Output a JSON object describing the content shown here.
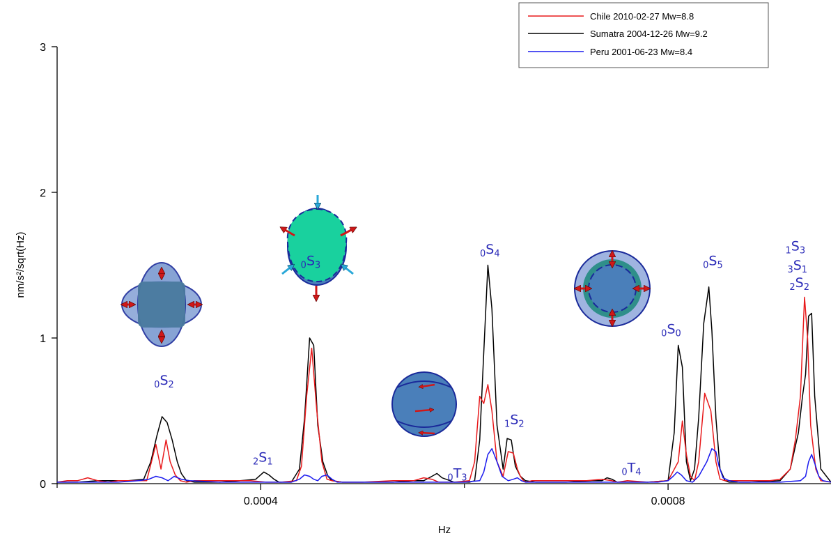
{
  "chart_data": {
    "type": "line",
    "xlabel": "Hz",
    "ylabel": "nm/s²/sqrt(Hz)",
    "xlim": [
      0.0002,
      0.00096
    ],
    "ylim": [
      0,
      3
    ],
    "x_ticks": [
      {
        "value": 0.0004,
        "label": "0.0004"
      },
      {
        "value": 0.0008,
        "label": "0.0008"
      }
    ],
    "y_ticks": [
      {
        "value": 0,
        "label": "0"
      },
      {
        "value": 1,
        "label": "1"
      },
      {
        "value": 2,
        "label": "2"
      },
      {
        "value": 3,
        "label": "3"
      }
    ],
    "legend": {
      "placement": "top-right"
    },
    "series": [
      {
        "name": "Chile 2010-02-27 Mw=8.8",
        "color": "#e8191b",
        "x": [
          0.0002,
          0.00021,
          0.00022,
          0.00023,
          0.00024,
          0.00025,
          0.00026,
          0.00027,
          0.000288,
          0.000297,
          0.000302,
          0.000307,
          0.000311,
          0.000316,
          0.000321,
          0.000327,
          0.000335,
          0.00035,
          0.00037,
          0.00039,
          0.000405,
          0.00042,
          0.000435,
          0.00044,
          0.000445,
          0.00045,
          0.000455,
          0.00046,
          0.000465,
          0.00047,
          0.00048,
          0.0005,
          0.00053,
          0.00055,
          0.00056,
          0.000568,
          0.000575,
          0.00059,
          0.000605,
          0.00061,
          0.000615,
          0.000619,
          0.000623,
          0.000627,
          0.000632,
          0.000638,
          0.000643,
          0.000648,
          0.000652,
          0.000655,
          0.000658,
          0.000661,
          0.000666,
          0.00067,
          0.00068,
          0.0007,
          0.00072,
          0.000735,
          0.000745,
          0.00075,
          0.00076,
          0.00078,
          0.0008,
          0.00081,
          0.000814,
          0.000818,
          0.000822,
          0.000826,
          0.00083,
          0.000836,
          0.000842,
          0.000847,
          0.000851,
          0.000856,
          0.000862,
          0.00087,
          0.00088,
          0.0009,
          0.00091,
          0.00092,
          0.000925,
          0.00093,
          0.000934,
          0.000937,
          0.00094,
          0.000945,
          0.00095,
          0.00096
        ],
        "values": [
          0.01,
          0.02,
          0.02,
          0.04,
          0.02,
          0.01,
          0.02,
          0.02,
          0.02,
          0.27,
          0.1,
          0.3,
          0.15,
          0.06,
          0.02,
          0.01,
          0.02,
          0.02,
          0.02,
          0.02,
          0.01,
          0.01,
          0.02,
          0.12,
          0.6,
          0.93,
          0.5,
          0.15,
          0.03,
          0.02,
          0.01,
          0.01,
          0.02,
          0.02,
          0.04,
          0.03,
          0.01,
          0.01,
          0.02,
          0.15,
          0.6,
          0.55,
          0.68,
          0.5,
          0.15,
          0.05,
          0.22,
          0.21,
          0.1,
          0.05,
          0.02,
          0.01,
          0.02,
          0.02,
          0.02,
          0.02,
          0.02,
          0.03,
          0.02,
          0.01,
          0.02,
          0.01,
          0.02,
          0.15,
          0.43,
          0.2,
          0.05,
          0.02,
          0.15,
          0.62,
          0.5,
          0.15,
          0.03,
          0.02,
          0.02,
          0.02,
          0.02,
          0.02,
          0.03,
          0.1,
          0.3,
          0.6,
          1.28,
          1.0,
          0.4,
          0.1,
          0.02,
          0.01
        ]
      },
      {
        "name": "Sumatra 2004-12-26 Mw=9.2",
        "color": "#000000",
        "x": [
          0.0002,
          0.00022,
          0.00024,
          0.00026,
          0.00027,
          0.000285,
          0.000292,
          0.000298,
          0.000303,
          0.000308,
          0.000313,
          0.000318,
          0.000322,
          0.000327,
          0.000335,
          0.00036,
          0.00038,
          0.000395,
          0.000403,
          0.000408,
          0.000413,
          0.000418,
          0.00043,
          0.000438,
          0.000443,
          0.000448,
          0.000452,
          0.000456,
          0.000461,
          0.000466,
          0.00047,
          0.00048,
          0.0005,
          0.00053,
          0.00055,
          0.00056,
          0.000568,
          0.000573,
          0.000578,
          0.00059,
          0.000605,
          0.00061,
          0.000615,
          0.000619,
          0.000623,
          0.000627,
          0.000632,
          0.000638,
          0.000642,
          0.000646,
          0.00065,
          0.000655,
          0.00066,
          0.00067,
          0.0007,
          0.000725,
          0.000735,
          0.00074,
          0.000745,
          0.00075,
          0.00076,
          0.00078,
          0.0008,
          0.000806,
          0.00081,
          0.000814,
          0.000818,
          0.000822,
          0.000826,
          0.00083,
          0.000835,
          0.00084,
          0.000843,
          0.000847,
          0.000851,
          0.000856,
          0.00086,
          0.00088,
          0.00091,
          0.00092,
          0.000928,
          0.000932,
          0.000935,
          0.000938,
          0.000941,
          0.000944,
          0.00095,
          0.00096
        ],
        "values": [
          0.01,
          0.01,
          0.02,
          0.02,
          0.02,
          0.03,
          0.15,
          0.33,
          0.46,
          0.42,
          0.3,
          0.15,
          0.07,
          0.02,
          0.01,
          0.01,
          0.02,
          0.03,
          0.08,
          0.06,
          0.03,
          0.01,
          0.01,
          0.1,
          0.45,
          1.0,
          0.95,
          0.4,
          0.15,
          0.05,
          0.02,
          0.01,
          0.01,
          0.01,
          0.02,
          0.02,
          0.05,
          0.07,
          0.04,
          0.01,
          0.01,
          0.02,
          0.3,
          0.9,
          1.5,
          1.2,
          0.4,
          0.1,
          0.31,
          0.3,
          0.12,
          0.05,
          0.02,
          0.01,
          0.01,
          0.02,
          0.02,
          0.04,
          0.03,
          0.01,
          0.01,
          0.01,
          0.02,
          0.35,
          0.95,
          0.8,
          0.15,
          0.02,
          0.1,
          0.45,
          1.1,
          1.35,
          1.05,
          0.45,
          0.1,
          0.02,
          0.01,
          0.01,
          0.02,
          0.1,
          0.35,
          0.6,
          0.75,
          1.15,
          1.17,
          0.6,
          0.1,
          0.01
        ]
      },
      {
        "name": "Peru 2001-06-23 Mw=8.4",
        "color": "#1a1aee",
        "x": [
          0.0002,
          0.00022,
          0.00026,
          0.00028,
          0.00029,
          0.000297,
          0.000303,
          0.000309,
          0.000315,
          0.000322,
          0.00033,
          0.00036,
          0.0004,
          0.00043,
          0.000438,
          0.000443,
          0.000448,
          0.000452,
          0.000456,
          0.00046,
          0.000465,
          0.00047,
          0.000475,
          0.00048,
          0.0005,
          0.0006,
          0.000615,
          0.000619,
          0.000623,
          0.000627,
          0.000632,
          0.000637,
          0.000643,
          0.000648,
          0.000652,
          0.000656,
          0.00066,
          0.00067,
          0.00075,
          0.00079,
          0.0008,
          0.000805,
          0.000809,
          0.000813,
          0.000818,
          0.000824,
          0.00083,
          0.000838,
          0.000843,
          0.000847,
          0.00085,
          0.000854,
          0.00086,
          0.00087,
          0.00091,
          0.00093,
          0.000935,
          0.000938,
          0.000941,
          0.000944,
          0.000948,
          0.000952,
          0.00096
        ],
        "values": [
          0.01,
          0.01,
          0.01,
          0.02,
          0.03,
          0.05,
          0.04,
          0.02,
          0.05,
          0.03,
          0.02,
          0.01,
          0.01,
          0.01,
          0.03,
          0.06,
          0.05,
          0.03,
          0.02,
          0.05,
          0.06,
          0.03,
          0.01,
          0.01,
          0.01,
          0.01,
          0.02,
          0.08,
          0.2,
          0.24,
          0.15,
          0.05,
          0.02,
          0.03,
          0.04,
          0.02,
          0.01,
          0.01,
          0.01,
          0.01,
          0.02,
          0.05,
          0.08,
          0.06,
          0.02,
          0.01,
          0.05,
          0.15,
          0.24,
          0.22,
          0.12,
          0.04,
          0.02,
          0.01,
          0.01,
          0.02,
          0.05,
          0.15,
          0.2,
          0.14,
          0.05,
          0.02,
          0.01
        ]
      }
    ],
    "annotations": [
      {
        "id": "0S2",
        "pre": "0",
        "main": "S",
        "sub": "2",
        "x": 0.000305,
        "y": 0.68
      },
      {
        "id": "2S1",
        "pre": "2",
        "main": "S",
        "sub": "1",
        "x": 0.000402,
        "y": 0.15
      },
      {
        "id": "0S3",
        "pre": "0",
        "main": "S",
        "sub": "3",
        "x": 0.000449,
        "y": 1.5
      },
      {
        "id": "0T3",
        "pre": "0",
        "main": "T",
        "sub": "3",
        "x": 0.000593,
        "y": 0.04
      },
      {
        "id": "0S4",
        "pre": "0",
        "main": "S",
        "sub": "4",
        "x": 0.000625,
        "y": 1.58
      },
      {
        "id": "1S2",
        "pre": "1",
        "main": "S",
        "sub": "2",
        "x": 0.000649,
        "y": 0.41
      },
      {
        "id": "0T4",
        "pre": "0",
        "main": "T",
        "sub": "4",
        "x": 0.000764,
        "y": 0.08
      },
      {
        "id": "0S0",
        "pre": "0",
        "main": "S",
        "sub": "0",
        "x": 0.000803,
        "y": 1.03
      },
      {
        "id": "0S5",
        "pre": "0",
        "main": "S",
        "sub": "5",
        "x": 0.000844,
        "y": 1.5
      },
      {
        "id": "1S3",
        "pre": "1",
        "main": "S",
        "sub": "3",
        "x": 0.000925,
        "y": 1.6
      },
      {
        "id": "3S1",
        "pre": "3",
        "main": "S",
        "sub": "1",
        "x": 0.000927,
        "y": 1.47
      },
      {
        "id": "2S2",
        "pre": "2",
        "main": "S",
        "sub": "2",
        "x": 0.000929,
        "y": 1.35
      }
    ]
  },
  "illustrations": {
    "mode_0S2": {
      "body_color": "#4a7fba",
      "outline_color": "#1a2a9a",
      "arrow_color": "#d01818"
    },
    "mode_0S3": {
      "body_color": "#19d19e",
      "outline_color": "#1a2a9a",
      "arrow_out_color": "#d01818",
      "arrow_in_color": "#2aa8d8"
    },
    "mode_0T": {
      "body_color": "#4a7fba",
      "outline_color": "#1a2a9a",
      "arrow_color": "#d01818"
    },
    "mode_0S0": {
      "outer_color": "#9fb4e0",
      "ring_color": "#2f8f8a",
      "core_color": "#4a7fba",
      "outline_color": "#1a2a9a",
      "arrow_color": "#d01818"
    }
  }
}
